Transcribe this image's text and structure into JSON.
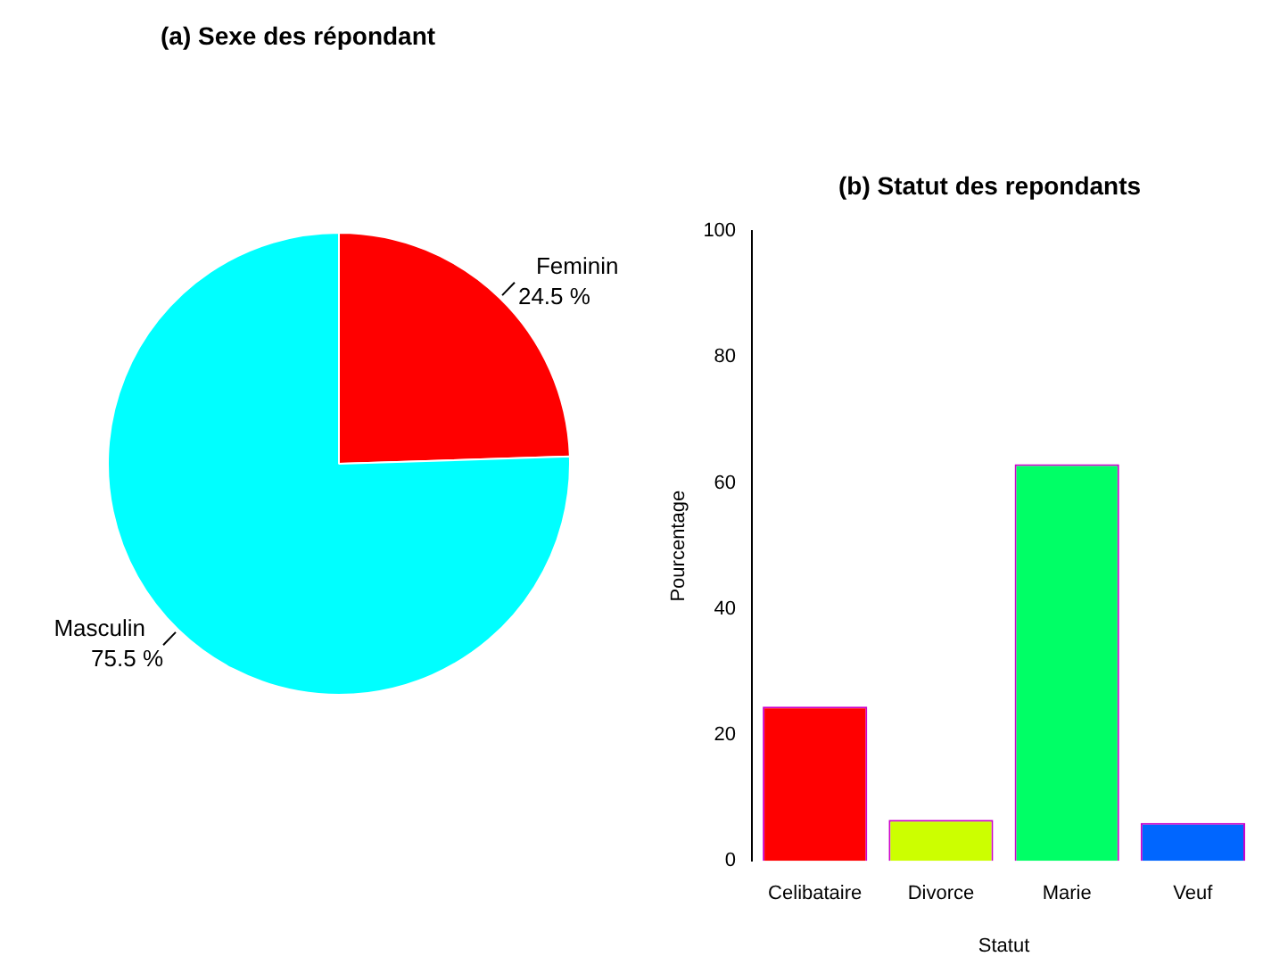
{
  "chart_data": [
    {
      "type": "pie",
      "title": "(a) Sexe des répondant",
      "categories": [
        "Feminin",
        "Masculin"
      ],
      "values": [
        24.5,
        75.5
      ],
      "colors": [
        "#ff0000",
        "#00ffff"
      ],
      "value_labels": [
        "24.5 %",
        "75.5 %"
      ],
      "legend": false
    },
    {
      "type": "bar",
      "title": "(b) Statut des repondants",
      "categories": [
        "Celibataire",
        "Divorce",
        "Marie",
        "Veuf"
      ],
      "values": [
        24.5,
        6.5,
        63,
        6
      ],
      "colors": [
        "#ff0000",
        "#ccff00",
        "#00ff66",
        "#0066ff"
      ],
      "xlabel": "Statut",
      "ylabel": "Pourcentage",
      "ylim": [
        0,
        100
      ],
      "yticks": [
        0,
        20,
        40,
        60,
        80,
        100
      ],
      "grid": false,
      "legend": false
    }
  ]
}
